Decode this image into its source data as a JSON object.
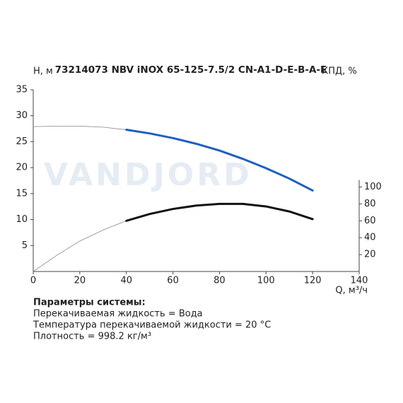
{
  "chart_data": {
    "type": "line",
    "title": "73214073 NBV iNOX 65-125-7.5/2 CN-A1-D-E-B-A-E",
    "ylabel": "H, м",
    "y2label": "КПД, %",
    "xlabel": "Q, м³/ч",
    "watermark": "VANDJORD",
    "x": [
      0,
      10,
      20,
      30,
      40,
      50,
      60,
      70,
      80,
      90,
      100,
      110,
      120
    ],
    "operating_range": [
      40,
      120
    ],
    "thin_color": "#888888",
    "series": [
      {
        "color": "#1f5fbf",
        "values": [
          27.9,
          28.0,
          28.0,
          27.8,
          27.3,
          26.6,
          25.7,
          24.6,
          23.3,
          21.7,
          19.9,
          17.9,
          15.6
        ]
      },
      {
        "color": "#111111",
        "axis": "y2",
        "values": [
          0,
          19,
          36,
          49,
          60,
          68,
          74,
          78,
          80,
          80,
          77,
          71,
          62
        ]
      }
    ],
    "xlim": [
      0,
      140
    ],
    "xticks": [
      0,
      20,
      40,
      60,
      80,
      100,
      120,
      140
    ],
    "ylim": [
      0,
      35
    ],
    "yticks": [
      5,
      10,
      15,
      20,
      25,
      30,
      35
    ],
    "y2lim": [
      0,
      215
    ],
    "y2ticks": [
      20,
      40,
      60,
      80,
      100
    ],
    "grid": false
  },
  "parameters": {
    "heading": "Параметры системы:",
    "lines": [
      "Перекачиваемая жидкость = Вода",
      "Температура перекачиваемой жидкости = 20 °C",
      "Плотность = 998.2 кг/м³"
    ]
  }
}
